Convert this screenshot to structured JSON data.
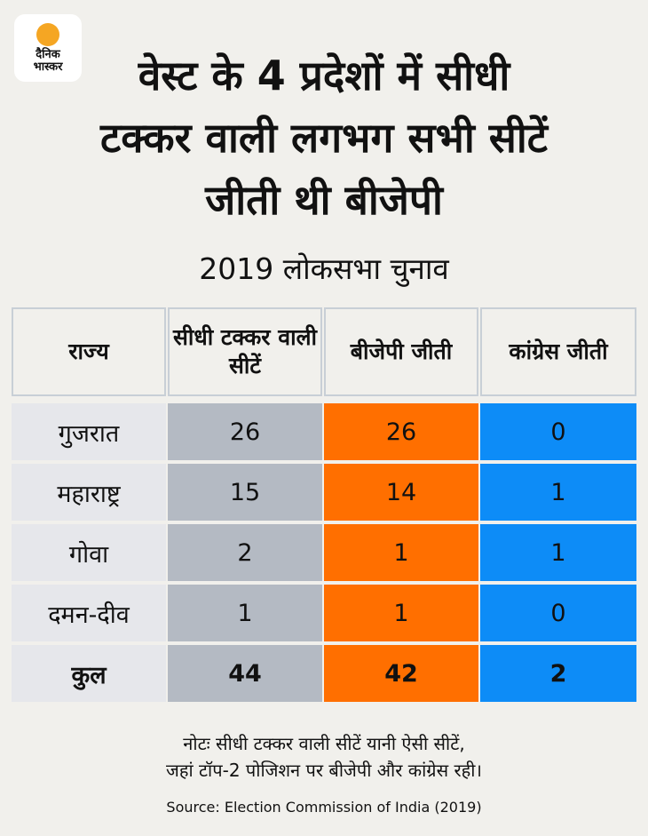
{
  "brand": {
    "line1": "दैनिक",
    "line2": "भास्कर",
    "sun_color": "#f5a623"
  },
  "headline": [
    "वेस्ट के 4 प्रदेशों में सीधी",
    "टक्कर वाली लगभग सभी सीटें",
    "जीती थी बीजेपी"
  ],
  "subtitle": "2019 लोकसभा चुनाव",
  "note": [
    "नोटः सीधी टक्कर वाली सीटें यानी ऐसी सीटें,",
    "जहां टॉप-2 पोजिशन पर बीजेपी और कांग्रेस रही।"
  ],
  "source": "Source: Election Commission of India (2019)",
  "chart_data": {
    "type": "table",
    "title": "2019 लोकसभा चुनाव",
    "columns": [
      "राज्य",
      "सीधी टक्कर वाली सीटें",
      "बीजेपी जीती",
      "कांग्रेस जीती"
    ],
    "rows": [
      {
        "state": "गुजरात",
        "direct": "26",
        "bjp": "26",
        "inc": "0"
      },
      {
        "state": "महाराष्ट्र",
        "direct": "15",
        "bjp": "14",
        "inc": "1"
      },
      {
        "state": "गोवा",
        "direct": "2",
        "bjp": "1",
        "inc": "1"
      },
      {
        "state": "दमन-दीव",
        "direct": "1",
        "bjp": "1",
        "inc": "0"
      }
    ],
    "total": {
      "state": "कुल",
      "direct": "44",
      "bjp": "42",
      "inc": "2"
    },
    "colors": {
      "state": "#e6e7eb",
      "direct": "#b4bac3",
      "bjp": "#ff6f00",
      "inc": "#0d8cf7"
    }
  }
}
